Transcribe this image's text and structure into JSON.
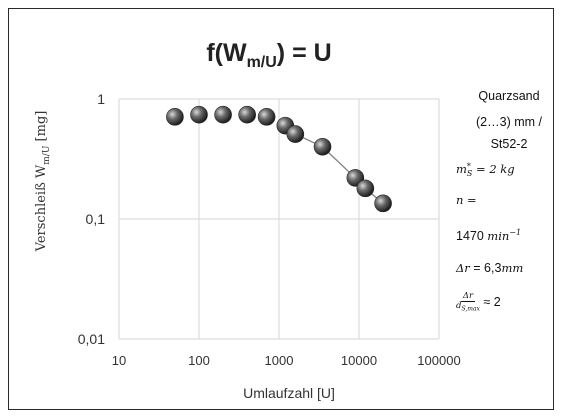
{
  "chart_data": {
    "type": "scatter",
    "title_parts": {
      "main": "f(W",
      "sub": "m/U",
      "rest": ") = U"
    },
    "xlabel": "Umlaufzahl [U]",
    "ylabel_parts": {
      "main": "Verschleiß W",
      "sub": "m/U",
      "rest": " [mg]"
    },
    "x_scale": "log",
    "y_scale": "log",
    "xlim": [
      10,
      100000
    ],
    "ylim": [
      0.01,
      1
    ],
    "x_ticks": [
      10,
      100,
      1000,
      10000,
      100000
    ],
    "x_tick_labels": [
      "10",
      "100",
      "1000",
      "10000",
      "100000"
    ],
    "y_ticks": [
      0.01,
      0.1,
      1
    ],
    "y_tick_labels": [
      "0,01",
      "0,1",
      "1"
    ],
    "grid": true,
    "marker_color": "#505050",
    "line_color": "#808080",
    "points": [
      {
        "x": 50,
        "y": 0.71
      },
      {
        "x": 100,
        "y": 0.74
      },
      {
        "x": 200,
        "y": 0.74
      },
      {
        "x": 400,
        "y": 0.74
      },
      {
        "x": 700,
        "y": 0.71
      },
      {
        "x": 1200,
        "y": 0.6
      },
      {
        "x": 1600,
        "y": 0.51
      },
      {
        "x": 3500,
        "y": 0.4
      },
      {
        "x": 9000,
        "y": 0.22
      },
      {
        "x": 12000,
        "y": 0.18
      },
      {
        "x": 20000,
        "y": 0.135
      }
    ],
    "trend_line_from_index": 5
  },
  "notes": {
    "line1": "Quarzsand",
    "line2": "(2…3) mm  /",
    "line3": "St52-2",
    "ms_symbol": "m",
    "ms_sup": "*",
    "ms_sub": "S",
    "ms_value": " = 2 kg",
    "n_label": "n   =",
    "n_value": "1470",
    "n_unit": "min",
    "n_exp": "−1",
    "dr_label": "Δr",
    "dr_value": " = 6,3",
    "dr_unit": "mm",
    "frac_num": "Δr",
    "frac_den": "d",
    "frac_den_sub": "S,max",
    "frac_rest": " ≈ 2"
  }
}
